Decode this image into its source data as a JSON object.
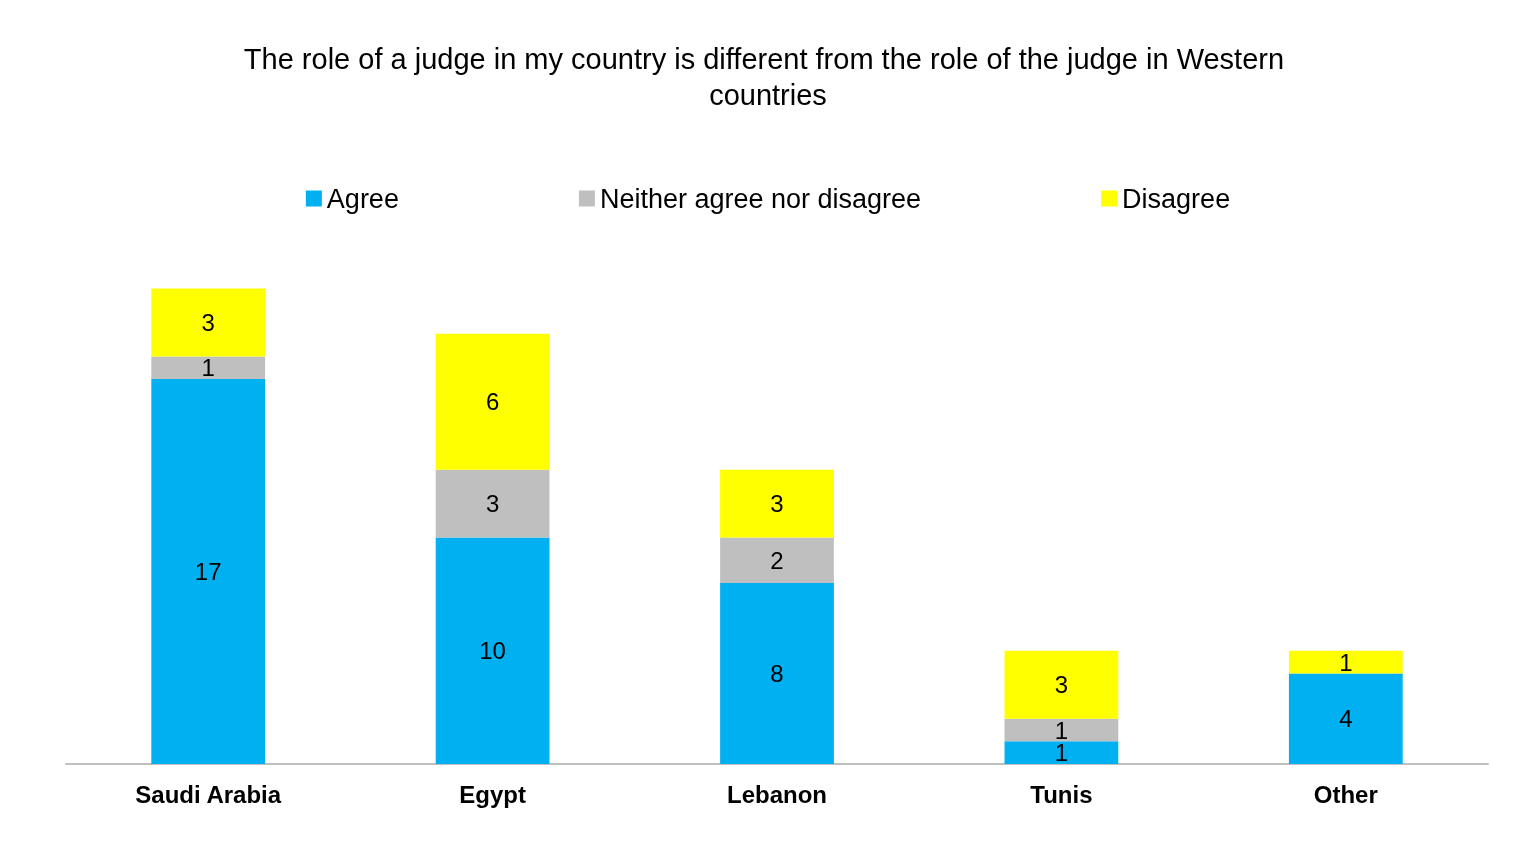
{
  "chart_data": {
    "type": "bar",
    "title": "The role of a judge in my country is different from the role of the judge in Western countries",
    "categories": [
      "Saudi Arabia",
      "Egypt",
      "Lebanon",
      "Tunis",
      "Other"
    ],
    "series": [
      {
        "name": "Agree",
        "color": "#00b0f0",
        "values": [
          17,
          10,
          8,
          1,
          4
        ]
      },
      {
        "name": "Neither agree nor disagree",
        "color": "#bfbfbf",
        "values": [
          1,
          3,
          2,
          1,
          null
        ]
      },
      {
        "name": "Disagree",
        "color": "#ffff00",
        "values": [
          3,
          6,
          3,
          3,
          1
        ]
      }
    ],
    "stacked": true,
    "data_labels": true,
    "legend": "top"
  }
}
